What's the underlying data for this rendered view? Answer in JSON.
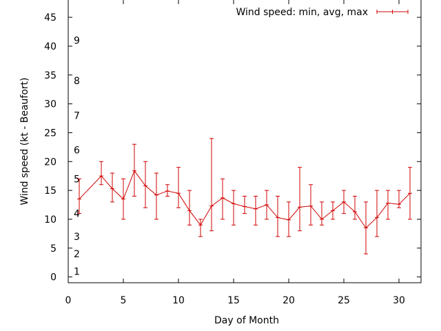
{
  "chart_data": {
    "type": "line",
    "legend_label": "Wind speed: min, avg, max",
    "legend_position": "top-right",
    "xlabel": "Day of Month",
    "ylabel": "Wind speed (kt - Beaufort)",
    "xlim": [
      0,
      32
    ],
    "ylim": [
      -1,
      48
    ],
    "x_ticks": [
      0,
      5,
      10,
      15,
      20,
      25,
      30
    ],
    "y_ticks": [
      0,
      5,
      10,
      15,
      20,
      25,
      30,
      35,
      40,
      45
    ],
    "grid": false,
    "series_color": "#d00000",
    "beaufort_labels": [
      {
        "label": "1",
        "y": 1
      },
      {
        "label": "2",
        "y": 4
      },
      {
        "label": "3",
        "y": 7
      },
      {
        "label": "4",
        "y": 11
      },
      {
        "label": "5",
        "y": 17
      },
      {
        "label": "6",
        "y": 22
      },
      {
        "label": "7",
        "y": 28
      },
      {
        "label": "8",
        "y": 34
      },
      {
        "label": "9",
        "y": 41
      }
    ],
    "series": [
      {
        "points": [
          {
            "x": 1,
            "min": 11,
            "avg": 13.5,
            "max": 17
          },
          {
            "x": 3,
            "min": 16,
            "avg": 17.5,
            "max": 20
          },
          {
            "x": 4,
            "min": 13,
            "avg": 15.3,
            "max": 18
          },
          {
            "x": 5,
            "min": 10,
            "avg": 13.5,
            "max": 17
          },
          {
            "x": 6,
            "min": 14,
            "avg": 18.4,
            "max": 23
          },
          {
            "x": 7,
            "min": 12,
            "avg": 15.8,
            "max": 20
          },
          {
            "x": 8,
            "min": 10,
            "avg": 14.2,
            "max": 18
          },
          {
            "x": 9,
            "min": 14,
            "avg": 14.9,
            "max": 16
          },
          {
            "x": 10,
            "min": 12,
            "avg": 14.5,
            "max": 19
          },
          {
            "x": 11,
            "min": 9,
            "avg": 11.5,
            "max": 15
          },
          {
            "x": 12,
            "min": 7,
            "avg": 9.0,
            "max": 10
          },
          {
            "x": 13,
            "min": 8,
            "avg": 12.3,
            "max": 24
          },
          {
            "x": 14,
            "min": 10,
            "avg": 13.7,
            "max": 17
          },
          {
            "x": 15,
            "min": 9,
            "avg": 12.7,
            "max": 15
          },
          {
            "x": 16,
            "min": 11,
            "avg": 12.2,
            "max": 14
          },
          {
            "x": 17,
            "min": 9,
            "avg": 11.8,
            "max": 14
          },
          {
            "x": 18,
            "min": 10,
            "avg": 12.5,
            "max": 15
          },
          {
            "x": 19,
            "min": 7,
            "avg": 10.3,
            "max": 14
          },
          {
            "x": 20,
            "min": 7,
            "avg": 9.9,
            "max": 13
          },
          {
            "x": 21,
            "min": 8,
            "avg": 12.1,
            "max": 19
          },
          {
            "x": 22,
            "min": 9,
            "avg": 12.3,
            "max": 16
          },
          {
            "x": 23,
            "min": 9,
            "avg": 10.0,
            "max": 13
          },
          {
            "x": 24,
            "min": 10,
            "avg": 11.5,
            "max": 13
          },
          {
            "x": 25,
            "min": 11,
            "avg": 13.0,
            "max": 15
          },
          {
            "x": 26,
            "min": 10,
            "avg": 11.3,
            "max": 14
          },
          {
            "x": 27,
            "min": 4,
            "avg": 8.5,
            "max": 13
          },
          {
            "x": 28,
            "min": 7,
            "avg": 10.3,
            "max": 15
          },
          {
            "x": 29,
            "min": 10,
            "avg": 12.8,
            "max": 15
          },
          {
            "x": 30,
            "min": 12,
            "avg": 12.6,
            "max": 15
          },
          {
            "x": 31,
            "min": 10,
            "avg": 14.5,
            "max": 19
          }
        ]
      }
    ]
  }
}
